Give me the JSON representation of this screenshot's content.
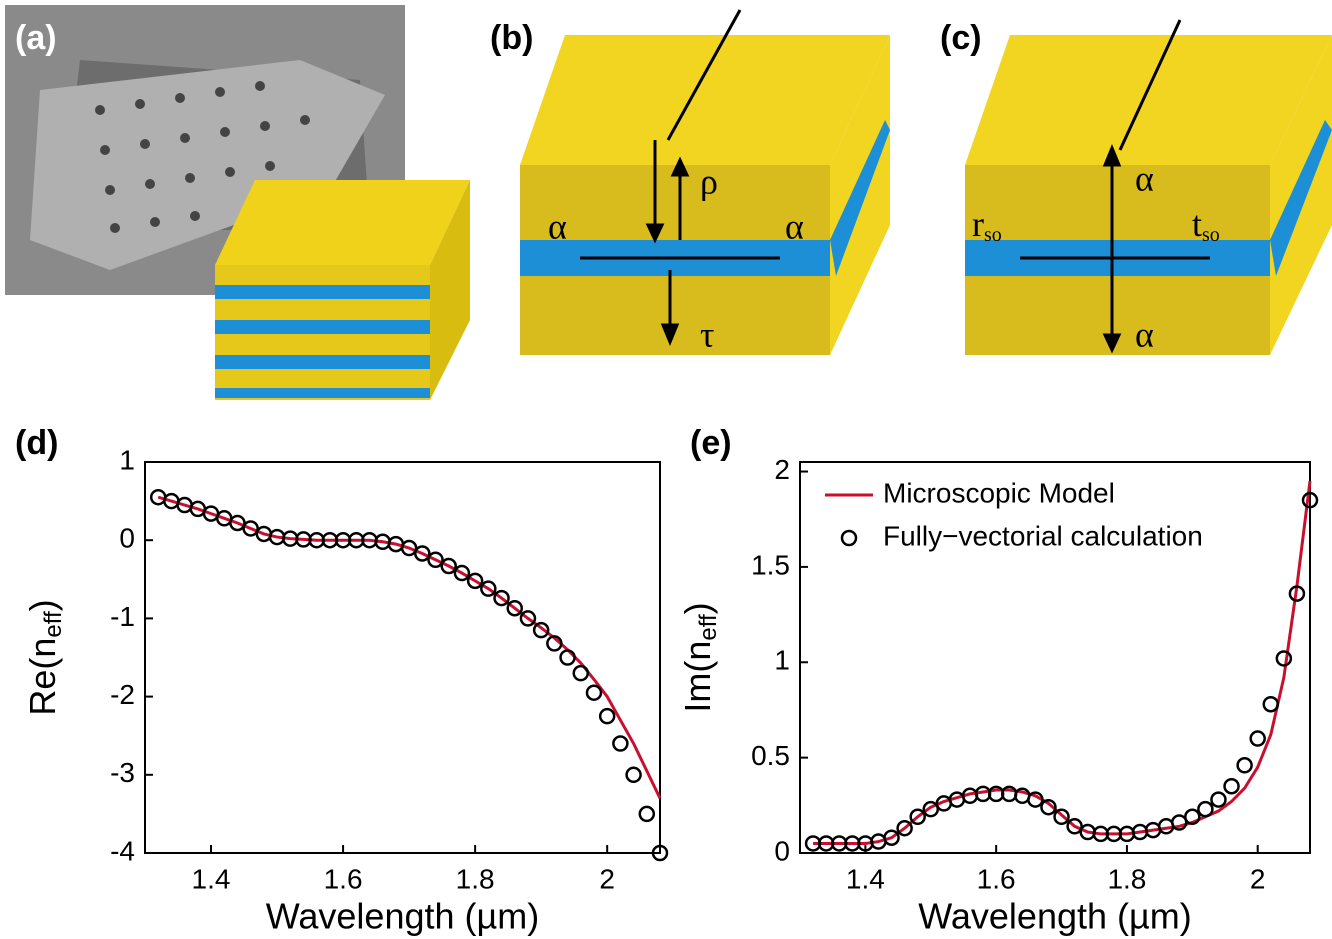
{
  "panels": [
    "(a)",
    "(b)",
    "(c)",
    "(d)",
    "(e)"
  ],
  "diagrams": {
    "b": {
      "labels": [
        {
          "text": "ρ"
        },
        {
          "text": "α"
        },
        {
          "text": "α"
        },
        {
          "text": "τ"
        }
      ]
    },
    "c": {
      "labels": [
        {
          "text": "α"
        },
        {
          "text": "r",
          "sub": "so"
        },
        {
          "text": "t",
          "sub": "so"
        },
        {
          "text": "α"
        }
      ]
    }
  },
  "chart_data": [
    {
      "type": "line",
      "xlabel": "Wavelength  (µm)",
      "ylabel_parts": [
        "Re(n",
        "eff",
        ")"
      ],
      "x": [
        1.32,
        1.34,
        1.36,
        1.38,
        1.4,
        1.42,
        1.44,
        1.46,
        1.48,
        1.5,
        1.52,
        1.54,
        1.56,
        1.58,
        1.6,
        1.62,
        1.64,
        1.66,
        1.68,
        1.7,
        1.72,
        1.74,
        1.76,
        1.78,
        1.8,
        1.82,
        1.84,
        1.86,
        1.88,
        1.9,
        1.92,
        1.94,
        1.96,
        1.98,
        2.0,
        2.02,
        2.04,
        2.06,
        2.08
      ],
      "series": [
        {
          "style": "line",
          "color": "#c8102e",
          "values": [
            0.55,
            0.5,
            0.45,
            0.4,
            0.34,
            0.28,
            0.22,
            0.15,
            0.08,
            0.04,
            0.02,
            0.01,
            0,
            0,
            0,
            0,
            0,
            -0.02,
            -0.05,
            -0.1,
            -0.17,
            -0.25,
            -0.33,
            -0.42,
            -0.52,
            -0.62,
            -0.74,
            -0.87,
            -1.0,
            -1.12,
            -1.25,
            -1.4,
            -1.57,
            -1.78,
            -2.0,
            -2.3,
            -2.6,
            -2.95,
            -3.3
          ]
        },
        {
          "style": "markers",
          "color": "#000000",
          "values": [
            0.55,
            0.5,
            0.45,
            0.4,
            0.34,
            0.28,
            0.22,
            0.15,
            0.08,
            0.04,
            0.02,
            0.01,
            0,
            0,
            0,
            0,
            0,
            -0.02,
            -0.05,
            -0.1,
            -0.17,
            -0.25,
            -0.33,
            -0.42,
            -0.52,
            -0.62,
            -0.74,
            -0.87,
            -1.0,
            -1.15,
            -1.32,
            -1.5,
            -1.7,
            -1.95,
            -2.25,
            -2.6,
            -3.0,
            -3.5,
            -4.0
          ]
        }
      ],
      "xlim": [
        1.3,
        2.08
      ],
      "ylim": [
        -4,
        1
      ],
      "xticks": [
        1.4,
        1.6,
        1.8,
        2
      ],
      "yticks": [
        1,
        0,
        -1,
        -2,
        -3,
        -4
      ]
    },
    {
      "type": "line",
      "xlabel": "Wavelength  (µm)",
      "ylabel_parts": [
        "Im(n",
        "eff",
        ")"
      ],
      "x": [
        1.32,
        1.34,
        1.36,
        1.38,
        1.4,
        1.42,
        1.44,
        1.46,
        1.48,
        1.5,
        1.52,
        1.54,
        1.56,
        1.58,
        1.6,
        1.62,
        1.64,
        1.66,
        1.68,
        1.7,
        1.72,
        1.74,
        1.76,
        1.78,
        1.8,
        1.82,
        1.84,
        1.86,
        1.88,
        1.9,
        1.92,
        1.94,
        1.96,
        1.98,
        2.0,
        2.02,
        2.04,
        2.06,
        2.08
      ],
      "series": [
        {
          "name": "Microscopic Model",
          "style": "line",
          "color": "#c8102e",
          "values": [
            0.05,
            0.05,
            0.05,
            0.05,
            0.05,
            0.06,
            0.08,
            0.13,
            0.19,
            0.24,
            0.27,
            0.29,
            0.31,
            0.32,
            0.33,
            0.33,
            0.32,
            0.3,
            0.26,
            0.2,
            0.14,
            0.11,
            0.1,
            0.1,
            0.1,
            0.11,
            0.12,
            0.13,
            0.14,
            0.16,
            0.19,
            0.22,
            0.27,
            0.34,
            0.45,
            0.62,
            0.92,
            1.4,
            1.95
          ]
        },
        {
          "name": "Fully−vectorial calculation",
          "style": "markers",
          "color": "#000000",
          "values": [
            0.05,
            0.05,
            0.05,
            0.05,
            0.05,
            0.06,
            0.08,
            0.13,
            0.19,
            0.23,
            0.26,
            0.28,
            0.3,
            0.31,
            0.31,
            0.31,
            0.3,
            0.28,
            0.24,
            0.19,
            0.14,
            0.11,
            0.1,
            0.1,
            0.1,
            0.11,
            0.12,
            0.14,
            0.16,
            0.19,
            0.23,
            0.28,
            0.35,
            0.46,
            0.6,
            0.78,
            1.02,
            1.36,
            1.85
          ]
        }
      ],
      "legend": "upper left",
      "xlim": [
        1.3,
        2.08
      ],
      "ylim": [
        0,
        2.05
      ],
      "xticks": [
        1.4,
        1.6,
        1.8,
        2
      ],
      "yticks": [
        0,
        0.5,
        1,
        1.5,
        2
      ]
    }
  ]
}
